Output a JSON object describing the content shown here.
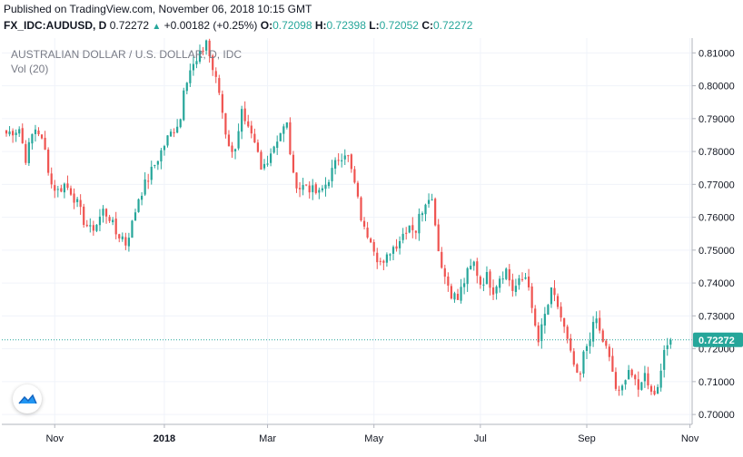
{
  "header": {
    "published": "Published on TradingView.com, November 06, 2018 10:15 GMT",
    "symbol": "FX_IDC:AUDUSD, D",
    "last": "0.72272",
    "change_arrow": "▲",
    "change": "+0.00182 (+0.25%)",
    "o_label": "O:",
    "o": "0.72098",
    "h_label": "H:",
    "h": "0.72398",
    "l_label": "L:",
    "l": "0.72052",
    "c_label": "C:",
    "c": "0.72272"
  },
  "chart_data": {
    "type": "candlestick",
    "title": "AUSTRALIAN DOLLAR / U.S. DOLLAR, D, IDC",
    "subtitle": "Vol (20)",
    "ylim": [
      0.697,
      0.8145
    ],
    "y_ticks": [
      "0.81000",
      "0.80000",
      "0.79000",
      "0.78000",
      "0.77000",
      "0.76000",
      "0.75000",
      "0.74000",
      "0.73000",
      "0.72000",
      "0.71000",
      "0.70000"
    ],
    "x_ticks": [
      "Nov",
      "2018",
      "Mar",
      "May",
      "Jul",
      "Sep",
      "Nov"
    ],
    "x_tick_index": [
      15,
      49,
      81,
      114,
      147,
      180,
      212
    ],
    "last_price": "0.72272",
    "last_price_value": 0.72272,
    "colors": {
      "up": "#26a69a",
      "down": "#ef5350",
      "price_line": "#26a69a",
      "label_bg": "#26a69a"
    },
    "grid": true,
    "close_path": [
      [
        0,
        0.7855
      ],
      [
        4,
        0.787
      ],
      [
        6,
        0.778
      ],
      [
        8,
        0.785
      ],
      [
        9,
        0.787
      ],
      [
        10,
        0.786
      ],
      [
        12,
        0.78
      ],
      [
        14,
        0.77
      ],
      [
        16,
        0.768
      ],
      [
        18,
        0.77
      ],
      [
        20,
        0.768
      ],
      [
        22,
        0.764
      ],
      [
        24,
        0.759
      ],
      [
        26,
        0.756
      ],
      [
        28,
        0.758
      ],
      [
        30,
        0.762
      ],
      [
        32,
        0.76
      ],
      [
        34,
        0.755
      ],
      [
        36,
        0.754
      ],
      [
        37,
        0.752
      ],
      [
        39,
        0.758
      ],
      [
        41,
        0.766
      ],
      [
        44,
        0.772
      ],
      [
        46,
        0.776
      ],
      [
        48,
        0.78
      ],
      [
        50,
        0.784
      ],
      [
        52,
        0.787
      ],
      [
        54,
        0.79
      ],
      [
        55,
        0.8
      ],
      [
        57,
        0.805
      ],
      [
        59,
        0.807
      ],
      [
        61,
        0.811
      ],
      [
        62,
        0.814
      ],
      [
        63,
        0.809
      ],
      [
        64,
        0.805
      ],
      [
        66,
        0.798
      ],
      [
        68,
        0.786
      ],
      [
        70,
        0.779
      ],
      [
        71,
        0.782
      ],
      [
        73,
        0.792
      ],
      [
        74,
        0.788
      ],
      [
        76,
        0.784
      ],
      [
        78,
        0.779
      ],
      [
        79,
        0.774
      ],
      [
        81,
        0.778
      ],
      [
        83,
        0.782
      ],
      [
        85,
        0.786
      ],
      [
        87,
        0.788
      ],
      [
        88,
        0.78
      ],
      [
        89,
        0.772
      ],
      [
        91,
        0.769
      ],
      [
        93,
        0.77
      ],
      [
        95,
        0.768
      ],
      [
        97,
        0.767
      ],
      [
        99,
        0.77
      ],
      [
        101,
        0.774
      ],
      [
        103,
        0.778
      ],
      [
        105,
        0.78
      ],
      [
        106,
        0.778
      ],
      [
        108,
        0.77
      ],
      [
        110,
        0.76
      ],
      [
        111,
        0.756
      ],
      [
        113,
        0.754
      ],
      [
        115,
        0.748
      ],
      [
        117,
        0.745
      ],
      [
        119,
        0.75
      ],
      [
        121,
        0.752
      ],
      [
        123,
        0.755
      ],
      [
        125,
        0.758
      ],
      [
        127,
        0.756
      ],
      [
        128,
        0.76
      ],
      [
        130,
        0.765
      ],
      [
        131,
        0.767
      ],
      [
        132,
        0.765
      ],
      [
        133,
        0.759
      ],
      [
        134,
        0.75
      ],
      [
        136,
        0.742
      ],
      [
        138,
        0.737
      ],
      [
        140,
        0.735
      ],
      [
        141,
        0.738
      ],
      [
        143,
        0.743
      ],
      [
        145,
        0.746
      ],
      [
        147,
        0.74
      ],
      [
        149,
        0.742
      ],
      [
        151,
        0.738
      ],
      [
        153,
        0.742
      ],
      [
        155,
        0.744
      ],
      [
        157,
        0.738
      ],
      [
        159,
        0.74
      ],
      [
        161,
        0.742
      ],
      [
        162,
        0.74
      ],
      [
        163,
        0.731
      ],
      [
        165,
        0.722
      ],
      [
        167,
        0.73
      ],
      [
        169,
        0.737
      ],
      [
        171,
        0.733
      ],
      [
        173,
        0.726
      ],
      [
        175,
        0.718
      ],
      [
        176,
        0.715
      ],
      [
        177,
        0.711
      ],
      [
        178,
        0.712
      ],
      [
        179,
        0.718
      ],
      [
        181,
        0.724
      ],
      [
        183,
        0.729
      ],
      [
        184,
        0.725
      ],
      [
        186,
        0.72
      ],
      [
        188,
        0.713
      ],
      [
        189,
        0.708
      ],
      [
        190,
        0.706
      ],
      [
        191,
        0.708
      ],
      [
        192,
        0.712
      ],
      [
        193,
        0.714
      ],
      [
        194,
        0.712
      ],
      [
        195,
        0.709
      ],
      [
        196,
        0.707
      ],
      [
        197,
        0.711
      ],
      [
        198,
        0.712
      ],
      [
        200,
        0.708
      ],
      [
        201,
        0.706
      ],
      [
        202,
        0.709
      ],
      [
        203,
        0.715
      ],
      [
        205,
        0.721
      ],
      [
        206,
        0.7227
      ]
    ]
  }
}
